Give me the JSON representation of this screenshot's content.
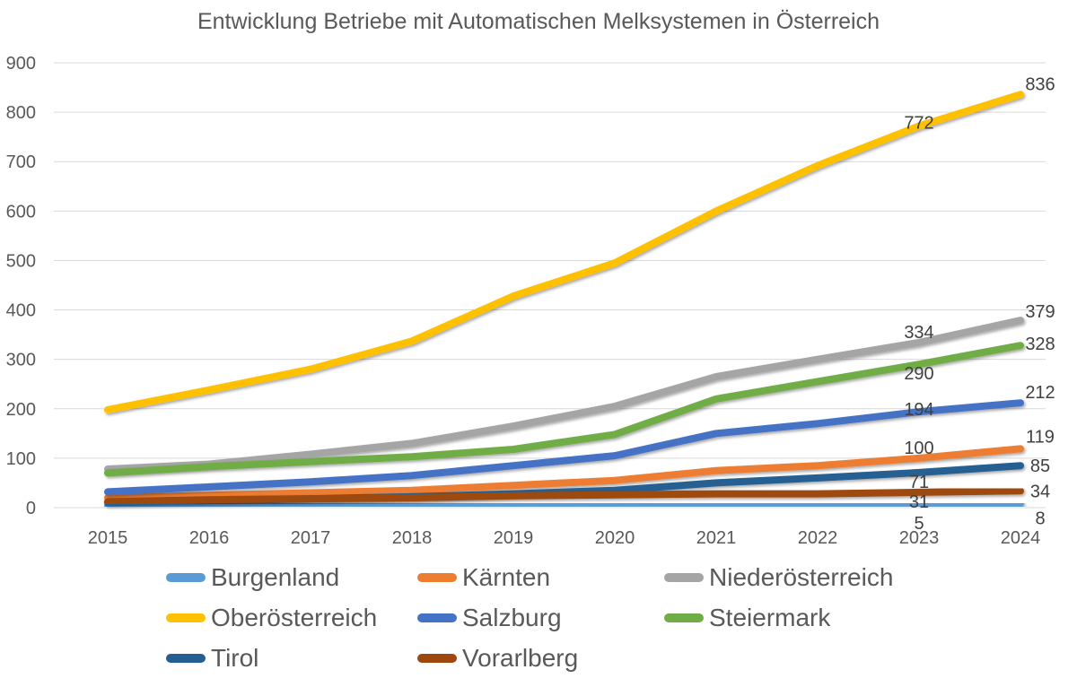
{
  "chart_data": {
    "type": "line",
    "title": "Entwicklung Betriebe mit Automatischen Melksystemen in Österreich",
    "xlabel": "",
    "ylabel": "",
    "x": [
      "2015",
      "2016",
      "2017",
      "2018",
      "2019",
      "2020",
      "2021",
      "2022",
      "2023",
      "2024"
    ],
    "ylim": [
      0,
      900
    ],
    "yticks": [
      0,
      100,
      200,
      300,
      400,
      500,
      600,
      700,
      800,
      900
    ],
    "grid": true,
    "legend_position": "bottom",
    "series": [
      {
        "name": "Burgenland",
        "color": "#5B9BD5",
        "values": [
          3,
          4,
          4,
          5,
          6,
          6,
          6,
          6,
          5,
          8
        ],
        "labels": {
          "2023": "5",
          "2024": "8"
        }
      },
      {
        "name": "Kärnten",
        "color": "#ED7D31",
        "values": [
          20,
          25,
          30,
          35,
          45,
          55,
          75,
          85,
          100,
          119
        ],
        "labels": {
          "2023": "100",
          "2024": "119"
        }
      },
      {
        "name": "Niederösterreich",
        "color": "#A5A5A5",
        "values": [
          78,
          88,
          108,
          130,
          165,
          205,
          265,
          300,
          334,
          379
        ],
        "labels": {
          "2023": "334",
          "2024": "379"
        }
      },
      {
        "name": "Oberösterreich",
        "color": "#FFC000",
        "values": [
          198,
          238,
          280,
          337,
          428,
          495,
          600,
          692,
          772,
          836
        ],
        "labels": {
          "2023": "772",
          "2024": "836"
        }
      },
      {
        "name": "Salzburg",
        "color": "#4472C4",
        "values": [
          32,
          42,
          52,
          65,
          85,
          105,
          150,
          170,
          194,
          212
        ],
        "labels": {
          "2023": "194",
          "2024": "212"
        }
      },
      {
        "name": "Steiermark",
        "color": "#70AD47",
        "values": [
          70,
          83,
          93,
          103,
          118,
          148,
          220,
          255,
          290,
          328
        ],
        "labels": {
          "2023": "290",
          "2024": "328"
        }
      },
      {
        "name": "Tirol",
        "color": "#255E91",
        "values": [
          10,
          14,
          18,
          22,
          28,
          35,
          50,
          60,
          71,
          85
        ],
        "labels": {
          "2023": "71",
          "2024": "85"
        }
      },
      {
        "name": "Vorarlberg",
        "color": "#9E480E",
        "values": [
          12,
          16,
          18,
          20,
          24,
          26,
          28,
          28,
          31,
          34
        ],
        "labels": {
          "2023": "31",
          "2024": "34"
        }
      }
    ]
  }
}
